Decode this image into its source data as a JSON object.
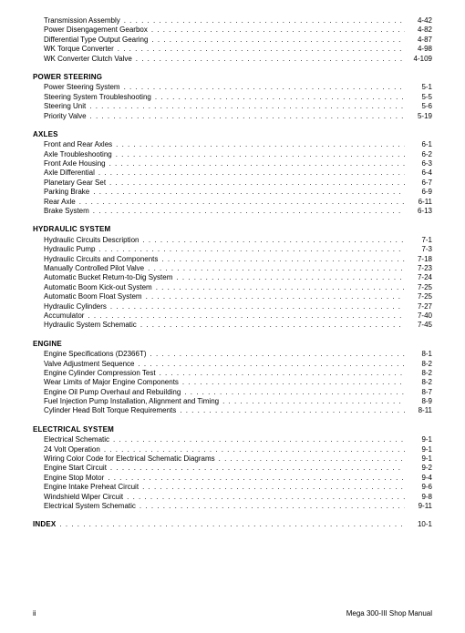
{
  "top_items": [
    {
      "label": "Transmission Assembly",
      "page": "4-42"
    },
    {
      "label": "Power Disengagement Gearbox",
      "page": "4-82"
    },
    {
      "label": "Differential Type Output Gearing",
      "page": "4-87"
    },
    {
      "label": "WK Torque Converter",
      "page": "4-98"
    },
    {
      "label": "WK Converter Clutch Valve",
      "page": "4-109"
    }
  ],
  "sections": [
    {
      "title": "POWER STEERING",
      "items": [
        {
          "label": "Power Steering System",
          "page": "5-1"
        },
        {
          "label": "Steering System Troubleshooting",
          "page": "5-5"
        },
        {
          "label": "Steering Unit",
          "page": "5-6"
        },
        {
          "label": "Priority Valve",
          "page": "5-19"
        }
      ]
    },
    {
      "title": "AXLES",
      "items": [
        {
          "label": "Front and Rear Axles",
          "page": "6-1"
        },
        {
          "label": "Axle Troubleshooting",
          "page": "6-2"
        },
        {
          "label": "Front Axle Housing",
          "page": "6-3"
        },
        {
          "label": "Axle Differential",
          "page": "6-4"
        },
        {
          "label": "Planetary Gear Set",
          "page": "6-7"
        },
        {
          "label": "Parking Brake",
          "page": "6-9"
        },
        {
          "label": "Rear Axle",
          "page": "6-11"
        },
        {
          "label": "Brake System",
          "page": "6-13"
        }
      ]
    },
    {
      "title": "HYDRAULIC SYSTEM",
      "items": [
        {
          "label": "Hydraulic Circuits Description",
          "page": "7-1"
        },
        {
          "label": "Hydraulic Pump",
          "page": "7-3"
        },
        {
          "label": "Hydraulic Circuits and Components",
          "page": "7-18"
        },
        {
          "label": "Manually Controlled Pilot Valve",
          "page": "7-23"
        },
        {
          "label": "Automatic Bucket Return-to-Dig System",
          "page": "7-24"
        },
        {
          "label": "Automatic Boom Kick-out System",
          "page": "7-25"
        },
        {
          "label": "Automatic Boom Float System",
          "page": "7-25"
        },
        {
          "label": "Hydraulic Cylinders",
          "page": "7-27"
        },
        {
          "label": "Accumulator",
          "page": "7-40"
        },
        {
          "label": "Hydraulic System Schematic",
          "page": "7-45"
        }
      ]
    },
    {
      "title": "ENGINE",
      "items": [
        {
          "label": "Engine Specifications (D2366T)",
          "page": "8-1"
        },
        {
          "label": "Valve Adjustment Sequence",
          "page": "8-2"
        },
        {
          "label": "Engine Cylinder Compression Test",
          "page": "8-2"
        },
        {
          "label": "Wear Limits of Major Engine Components",
          "page": "8-2"
        },
        {
          "label": "Engine Oil Pump Overhaul and Rebuilding",
          "page": "8-7"
        },
        {
          "label": "Fuel Injection Pump Installation, Alignment and Timing",
          "page": "8-9"
        },
        {
          "label": "Cylinder Head Bolt Torque Requirements",
          "page": "8-11"
        }
      ]
    },
    {
      "title": "ELECTRICAL SYSTEM",
      "items": [
        {
          "label": "Electrical Schematic",
          "page": "9-1"
        },
        {
          "label": "24 Volt Operation",
          "page": "9-1"
        },
        {
          "label": "Wiring Color Code for Electrical Schematic Diagrams",
          "page": "9-1"
        },
        {
          "label": "Engine Start Circuit",
          "page": "9-2"
        },
        {
          "label": "Engine Stop Motor",
          "page": "9-4"
        },
        {
          "label": "Engine Intake Preheat Circuit",
          "page": "9-6"
        },
        {
          "label": "Windshield Wiper Circuit",
          "page": "9-8"
        },
        {
          "label": "Electrical System Schematic",
          "page": "9-11"
        }
      ]
    }
  ],
  "index": {
    "title": "INDEX",
    "page": "10-1"
  },
  "footer": {
    "left": "ii",
    "right": "Mega 300-III Shop Manual"
  }
}
